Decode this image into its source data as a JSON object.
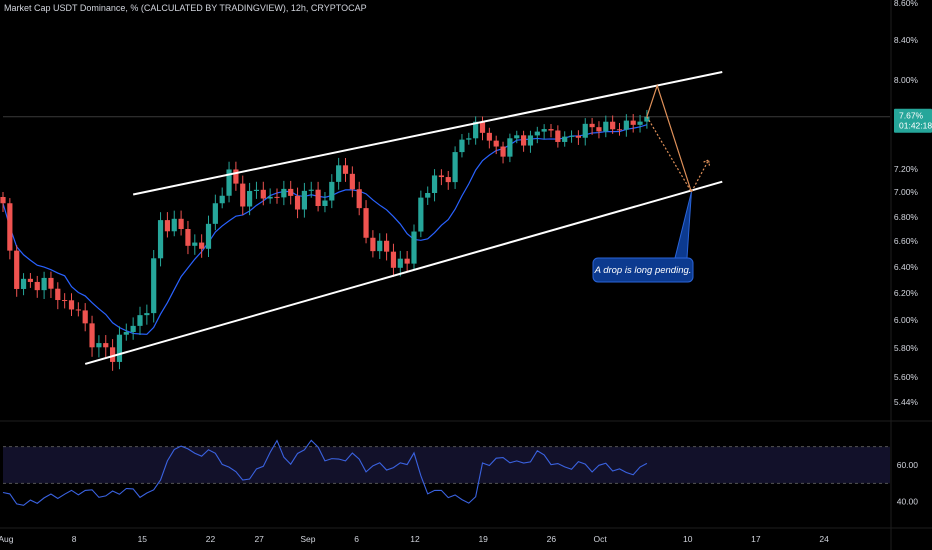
{
  "header": {
    "title": "Market Cap USDT Dominance, % (CALCULATED BY TRADINGVIEW), 12h, CRYPTOCAP"
  },
  "colors": {
    "background": "#000000",
    "bull": "#26a69a",
    "bear": "#ef5350",
    "ma": "#2962ff",
    "channel": "#ffffff",
    "projection_up": "#e0915a",
    "projection_down": "#c8c8c8",
    "note_bg": "#0c3a8f",
    "rsi": "#3a62e0",
    "rsi_band": "#12112a"
  },
  "chart_data": [
    {
      "type": "candlestick",
      "title": "Market Cap USDT Dominance, % (CALCULATED BY TRADINGVIEW), 12h, CRYPTOCAP",
      "y_unit": "%",
      "ylim": [
        5.38,
        8.62
      ],
      "y_ticks": [
        "8.60%",
        "8.40%",
        "8.00%",
        "7.20%",
        "7.00%",
        "6.80%",
        "6.60%",
        "6.40%",
        "6.20%",
        "6.00%",
        "5.80%",
        "5.60%",
        "5.44%"
      ],
      "x_ticks": [
        {
          "label": "Aug",
          "day": 1
        },
        {
          "label": "8",
          "day": 8
        },
        {
          "label": "15",
          "day": 15
        },
        {
          "label": "22",
          "day": 22
        },
        {
          "label": "27",
          "day": 27
        },
        {
          "label": "Sep",
          "day": 32
        },
        {
          "label": "6",
          "day": 37
        },
        {
          "label": "12",
          "day": 43
        },
        {
          "label": "19",
          "day": 50
        },
        {
          "label": "26",
          "day": 57
        },
        {
          "label": "Oct",
          "day": 62
        },
        {
          "label": "10",
          "day": 71
        },
        {
          "label": "17",
          "day": 78
        },
        {
          "label": "24",
          "day": 85
        }
      ],
      "close_anchors": [
        [
          0,
          6.88
        ],
        [
          1,
          6.5
        ],
        [
          2,
          6.3
        ],
        [
          4,
          6.25
        ],
        [
          6,
          6.3
        ],
        [
          8,
          6.15
        ],
        [
          10,
          6.12
        ],
        [
          12,
          5.95
        ],
        [
          14,
          5.8
        ],
        [
          16,
          5.75
        ],
        [
          17,
          5.88
        ],
        [
          19,
          5.95
        ],
        [
          21,
          6.1
        ],
        [
          23,
          6.75
        ],
        [
          25,
          6.75
        ],
        [
          27,
          6.6
        ],
        [
          29,
          6.55
        ],
        [
          31,
          6.9
        ],
        [
          33,
          7.15
        ],
        [
          35,
          6.95
        ],
        [
          37,
          7.0
        ],
        [
          39,
          6.95
        ],
        [
          41,
          7.0
        ],
        [
          43,
          6.92
        ],
        [
          45,
          7.0
        ],
        [
          47,
          6.9
        ],
        [
          49,
          7.25
        ],
        [
          51,
          7.05
        ],
        [
          53,
          6.62
        ],
        [
          55,
          6.55
        ],
        [
          57,
          6.45
        ],
        [
          59,
          6.42
        ],
        [
          61,
          6.95
        ],
        [
          63,
          7.1
        ],
        [
          65,
          7.15
        ],
        [
          67,
          7.45
        ],
        [
          69,
          7.6
        ],
        [
          71,
          7.45
        ],
        [
          73,
          7.35
        ],
        [
          75,
          7.5
        ],
        [
          77,
          7.45
        ],
        [
          79,
          7.6
        ],
        [
          81,
          7.45
        ],
        [
          83,
          7.5
        ],
        [
          85,
          7.55
        ],
        [
          87,
          7.6
        ],
        [
          89,
          7.55
        ],
        [
          91,
          7.62
        ],
        [
          93,
          7.6
        ],
        [
          94,
          7.67
        ]
      ],
      "last_price": "7.67%",
      "countdown": "01:42:18",
      "channel": {
        "upper": [
          {
            "x": 19,
            "y": 6.98
          },
          {
            "x": 105,
            "y": 8.08
          }
        ],
        "lower": [
          {
            "x": 12,
            "y": 5.69
          },
          {
            "x": 105,
            "y": 7.09
          }
        ]
      },
      "projection_up": [
        {
          "x": 94,
          "y": 7.67
        },
        {
          "x": 95.5,
          "y": 7.95
        },
        {
          "x": 100.5,
          "y": 7.0
        }
      ],
      "projection_down": [
        {
          "x": 94,
          "y": 7.67
        },
        {
          "x": 100.5,
          "y": 7.0
        },
        {
          "x": 103,
          "y": 7.28
        }
      ],
      "annotation": "A drop is long pending.",
      "annotation_anchor": {
        "x": 100.5,
        "y": 7.0
      }
    },
    {
      "type": "line",
      "name": "RSI",
      "ylim": [
        30,
        78
      ],
      "y_ticks": [
        "60.00",
        "40.00"
      ],
      "band": [
        50,
        70
      ],
      "values_anchors": [
        [
          0,
          45
        ],
        [
          3,
          38
        ],
        [
          6,
          42
        ],
        [
          9,
          44
        ],
        [
          12,
          46
        ],
        [
          15,
          43
        ],
        [
          18,
          47
        ],
        [
          20,
          44
        ],
        [
          22,
          45
        ],
        [
          24,
          62
        ],
        [
          26,
          72
        ],
        [
          28,
          65
        ],
        [
          30,
          68
        ],
        [
          32,
          62
        ],
        [
          34,
          55
        ],
        [
          36,
          52
        ],
        [
          38,
          61
        ],
        [
          40,
          72
        ],
        [
          42,
          60
        ],
        [
          44,
          70
        ],
        [
          45,
          73
        ],
        [
          47,
          64
        ],
        [
          49,
          62
        ],
        [
          51,
          66
        ],
        [
          53,
          58
        ],
        [
          55,
          60
        ],
        [
          57,
          58
        ],
        [
          59,
          62
        ],
        [
          60,
          66
        ],
        [
          61,
          53
        ],
        [
          62,
          46
        ],
        [
          64,
          45
        ],
        [
          66,
          43
        ],
        [
          67,
          40
        ],
        [
          69,
          42
        ],
        [
          70,
          60
        ],
        [
          72,
          63
        ],
        [
          74,
          63
        ],
        [
          76,
          60
        ],
        [
          78,
          67
        ],
        [
          80,
          62
        ],
        [
          82,
          58
        ],
        [
          84,
          61
        ],
        [
          86,
          58
        ],
        [
          88,
          60
        ],
        [
          90,
          57
        ],
        [
          91,
          55
        ],
        [
          93,
          58
        ],
        [
          94,
          60
        ]
      ]
    }
  ]
}
